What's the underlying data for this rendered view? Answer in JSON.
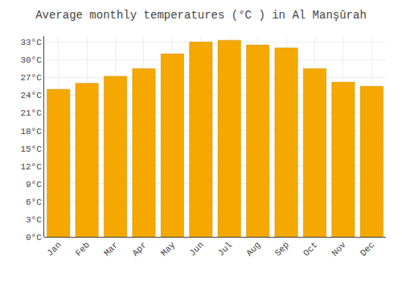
{
  "chart_data": {
    "type": "bar",
    "title": "Average monthly temperatures (°C ) in Al Manşūrah",
    "categories": [
      "Jan",
      "Feb",
      "Mar",
      "Apr",
      "May",
      "Jun",
      "Jul",
      "Aug",
      "Sep",
      "Oct",
      "Nov",
      "Dec"
    ],
    "values": [
      25.0,
      26.0,
      27.2,
      28.5,
      31.0,
      33.0,
      33.3,
      32.5,
      32.0,
      28.5,
      26.2,
      25.5
    ],
    "color": "#F5A800",
    "ylim": [
      0,
      34
    ],
    "yticks": [
      {
        "value": 0,
        "label": "0°C"
      },
      {
        "value": 3,
        "label": "3°C"
      },
      {
        "value": 6,
        "label": "6°C"
      },
      {
        "value": 9,
        "label": "9°C"
      },
      {
        "value": 12,
        "label": "12°C"
      },
      {
        "value": 15,
        "label": "15°C"
      },
      {
        "value": 18,
        "label": "18°C"
      },
      {
        "value": 21,
        "label": "21°C"
      },
      {
        "value": 24,
        "label": "24°C"
      },
      {
        "value": 27,
        "label": "27°C"
      },
      {
        "value": 30,
        "label": "30°C"
      },
      {
        "value": 33,
        "label": "33°C"
      }
    ],
    "grid": true
  }
}
